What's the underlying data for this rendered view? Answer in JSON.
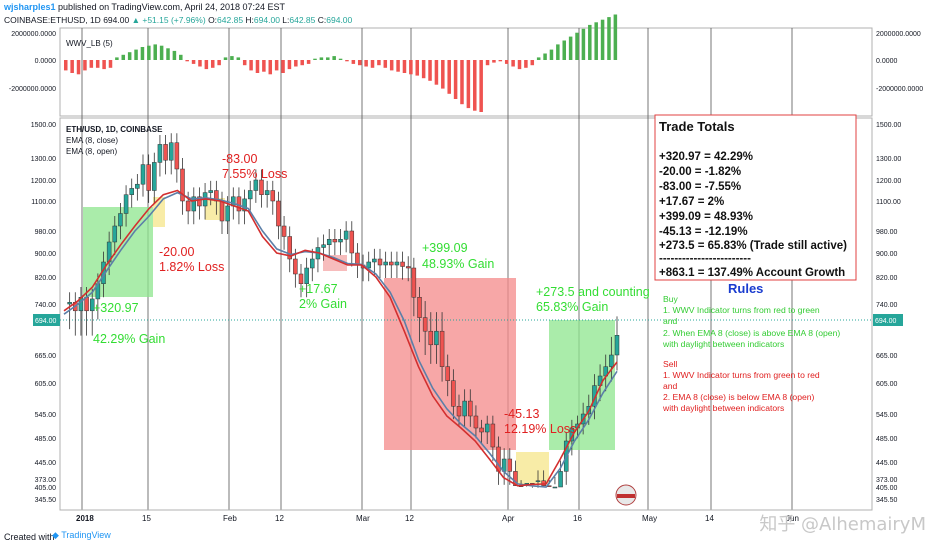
{
  "header": {
    "author": "wjsharples1",
    "published": "published on TradingView.com, April 24, 2018 07:24 EST",
    "symbol": "COINBASE:ETHUSD, 1D",
    "price": "694.00",
    "change": "▲ +51.15 (+7.96%)",
    "o_label": "O:",
    "o_val": "642.85",
    "h_label": "H:",
    "h_val": "694.00",
    "l_label": "L:",
    "l_val": "642.85",
    "c_label": "C:",
    "c_val": "694.00"
  },
  "indicator_pane": {
    "name": "WWV_LB (5)",
    "ticks": [
      "2000000.0000",
      "0.0000",
      "-2000000.0000"
    ],
    "colors": {
      "positive": "#4caf50",
      "negative": "#ef5350"
    }
  },
  "price_pane": {
    "legend": [
      "ETH/USD, 1D, COINBASE",
      "EMA (8, close)",
      "EMA (8, open)"
    ],
    "ticks": [
      "1500.00",
      "1300.00",
      "1200.00",
      "1100.00",
      "980.00",
      "900.00",
      "820.00",
      "740.00",
      "665.00",
      "605.00",
      "545.00",
      "485.00",
      "445.00",
      "405.00",
      "373.00",
      "345.50"
    ],
    "last_price": "694.00",
    "colors": {
      "up": "#26a69a",
      "down": "#ef5350",
      "ema_close": "#d32f2f",
      "ema_open": "#5c7fa8",
      "gain_box": "#8ee58e",
      "loss_box": "#f48a8a",
      "gain_text": "#33dd33",
      "loss_text": "#e02020"
    }
  },
  "x_axis": [
    "2018",
    "15",
    "Feb",
    "12",
    "Mar",
    "12",
    "Apr",
    "16",
    "May",
    "14",
    "Jun"
  ],
  "annotations": {
    "t1_a": "+320.97",
    "t1_b": "42.29% Gain",
    "t2_a": "-20.00",
    "t2_b": "1.82% Loss",
    "t3_a": "-83.00",
    "t3_b": "7.55% Loss",
    "t4_a": "+17.67",
    "t4_b": "2% Gain",
    "t5_a": "+399.09",
    "t5_b": "48.93% Gain",
    "t6_a": "-45.13",
    "t6_b": "12.19% Loss",
    "t7_a": "+273.5 and counting",
    "t7_b": "65.83% Gain"
  },
  "trade_totals": {
    "title": "Trade Totals",
    "lines": [
      "+320.97 = 42.29%",
      "-20.00 = -1.82%",
      "-83.00 = -7.55%",
      "+17.67 = 2%",
      "+399.09 = 48.93%",
      "-45.13 = -12.19%",
      "+273.5 = 65.83% (Trade still active)",
      "------------------------",
      "+863.1 = 137.49% Account Growth"
    ]
  },
  "rules": {
    "title": "Rules",
    "buy": [
      "Buy",
      "1. WWV Indicator turns from red to green",
      "and",
      "2. When EMA 8 (close) is above EMA 8 (open)",
      "with daylight between indicators"
    ],
    "sell": [
      "Sell",
      "1. WWV Indicator turns from green to red",
      "and",
      "2.  EMA 8 (close) is below EMA 8 (open)",
      "with daylight between indicators"
    ]
  },
  "footer": {
    "created": "Created with",
    "brand": "TradingView"
  },
  "watermark": "知乎 @AlhemairyM",
  "chart_data": [
    {
      "type": "bar",
      "title": "WWV_LB (5)",
      "values": [
        -0.4,
        -0.5,
        -0.55,
        -0.4,
        -0.3,
        -0.3,
        -0.35,
        -0.3,
        0.1,
        0.2,
        0.3,
        0.4,
        0.5,
        0.55,
        0.6,
        0.55,
        0.45,
        0.35,
        0.2,
        -0.05,
        -0.15,
        -0.25,
        -0.35,
        -0.3,
        -0.2,
        0.1,
        0.15,
        0.1,
        -0.2,
        -0.4,
        -0.5,
        -0.45,
        -0.55,
        -0.4,
        -0.5,
        -0.35,
        -0.25,
        -0.2,
        -0.15,
        0.05,
        0.1,
        0.1,
        0.15,
        0.05,
        -0.05,
        -0.15,
        -0.2,
        -0.25,
        -0.3,
        -0.2,
        -0.3,
        -0.4,
        -0.45,
        -0.5,
        -0.55,
        -0.6,
        -0.7,
        -0.8,
        -0.95,
        -1.1,
        -1.3,
        -1.5,
        -1.7,
        -1.85,
        -1.95,
        -2.0,
        -0.2,
        -0.1,
        -0.05,
        -0.15,
        -0.25,
        -0.35,
        -0.3,
        -0.2,
        0.1,
        0.25,
        0.4,
        0.6,
        0.75,
        0.9,
        1.05,
        1.2,
        1.35,
        1.45,
        1.55,
        1.65,
        1.75
      ],
      "unit": "millions",
      "ylim": [
        -2.5,
        2.5
      ]
    },
    {
      "type": "line",
      "title": "ETH/USD, 1D, COINBASE",
      "series": [
        {
          "name": "ETH/USD, 1D, COINBASE",
          "values": [
            740,
            745,
            730,
            760,
            730,
            755,
            800,
            870,
            940,
            1000,
            1050,
            1130,
            1160,
            1180,
            1270,
            1150,
            1280,
            1380,
            1290,
            1390,
            1250,
            1100,
            1060,
            1120,
            1080,
            1140,
            1150,
            1100,
            1020,
            1080,
            1120,
            1060,
            1110,
            1150,
            1200,
            1130,
            1150,
            1100,
            1000,
            960,
            880,
            830,
            800,
            850,
            880,
            920,
            930,
            950,
            940,
            950,
            980,
            900,
            860,
            850,
            870,
            880,
            860,
            870,
            860,
            870,
            855,
            850,
            760,
            720,
            700,
            680,
            700,
            640,
            610,
            560,
            540,
            570,
            540,
            510,
            500,
            520,
            470,
            430,
            450,
            430,
            400,
            385,
            390,
            380,
            415,
            400,
            385,
            405,
            430,
            480,
            510,
            520,
            545,
            560,
            600,
            620,
            640,
            665,
            694
          ]
        },
        {
          "name": "EMA (8, close)",
          "values": [
            730,
            750,
            790,
            860,
            930,
            1000,
            1070,
            1130,
            1150,
            1100,
            1110,
            1100,
            1080,
            1060,
            960,
            900,
            890,
            910,
            900,
            880,
            860,
            860,
            820,
            760,
            700,
            640,
            580,
            540,
            510,
            480,
            450,
            420,
            400,
            395,
            410,
            450,
            500,
            550,
            610,
            650
          ]
        },
        {
          "name": "EMA (8, open)",
          "values": [
            725,
            740,
            775,
            840,
            910,
            980,
            1040,
            1110,
            1140,
            1110,
            1115,
            1105,
            1090,
            1070,
            980,
            915,
            895,
            905,
            900,
            885,
            865,
            862,
            830,
            775,
            715,
            655,
            595,
            555,
            520,
            490,
            460,
            430,
            410,
            400,
            405,
            435,
            480,
            530,
            585,
            630
          ]
        }
      ],
      "xlabel": "",
      "ylabel": "",
      "ylim": [
        345.5,
        1500
      ],
      "trades": [
        {
          "change": "+320.97",
          "percent": "42.29% Gain",
          "result": "gain"
        },
        {
          "change": "-20.00",
          "percent": "1.82% Loss",
          "result": "loss"
        },
        {
          "change": "-83.00",
          "percent": "7.55% Loss",
          "result": "loss"
        },
        {
          "change": "+17.67",
          "percent": "2% Gain",
          "result": "gain"
        },
        {
          "change": "+399.09",
          "percent": "48.93% Gain",
          "result": "gain"
        },
        {
          "change": "-45.13",
          "percent": "12.19% Loss",
          "result": "loss"
        },
        {
          "change": "+273.5 and counting",
          "percent": "65.83% Gain",
          "result": "gain"
        }
      ]
    }
  ]
}
